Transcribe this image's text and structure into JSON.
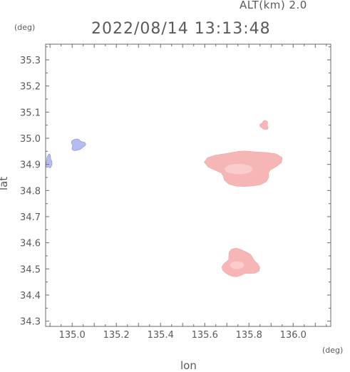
{
  "header": {
    "altitude": "ALT(km) 2.0",
    "datetime": "2022/08/14 13:13:48"
  },
  "axes": {
    "y_unit": "(deg)",
    "x_unit": "(deg)",
    "x_label": "lon",
    "y_label": "lat"
  },
  "chart_data": {
    "type": "heatmap",
    "xlabel": "lon",
    "ylabel": "lat",
    "xlim": [
      134.88,
      136.17
    ],
    "ylim": [
      34.28,
      35.36
    ],
    "x_ticks": [
      "135.0",
      "135.2",
      "135.4",
      "135.6",
      "135.8",
      "136.0"
    ],
    "y_ticks": [
      "34.3",
      "34.4",
      "34.5",
      "34.6",
      "34.7",
      "34.8",
      "34.9",
      "35.0",
      "35.1",
      "35.2",
      "35.3"
    ],
    "colors": {
      "positive": "#f7b3b3",
      "positive_light": "#fbd2d2",
      "negative": "#b3b8f0",
      "negative_dark": "#7f86e0"
    },
    "regions": [
      {
        "sign": "negative",
        "lon": [
          134.88,
          134.91
        ],
        "lat": [
          34.88,
          34.94
        ]
      },
      {
        "sign": "negative",
        "lon": [
          134.99,
          135.06
        ],
        "lat": [
          34.95,
          35.0
        ]
      },
      {
        "sign": "positive",
        "lon": [
          135.6,
          135.96
        ],
        "lat": [
          34.81,
          34.97
        ]
      },
      {
        "sign": "positive",
        "lon": [
          135.85,
          135.89
        ],
        "lat": [
          35.03,
          35.07
        ]
      },
      {
        "sign": "positive",
        "lon": [
          135.67,
          135.85
        ],
        "lat": [
          34.46,
          34.58
        ]
      }
    ]
  }
}
